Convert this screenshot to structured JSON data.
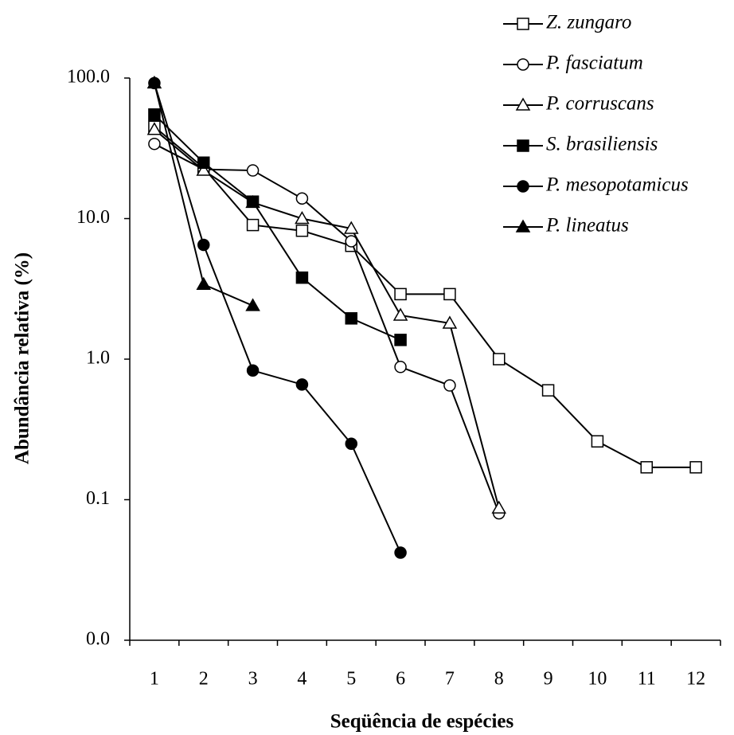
{
  "chart_data": {
    "type": "line",
    "x_label": "Seqüência de espécies",
    "y_label": "Abundância relativa (%)",
    "categories": [
      1,
      2,
      3,
      4,
      5,
      6,
      7,
      8,
      9,
      10,
      11,
      12
    ],
    "log_scale_y": true,
    "ylim": [
      0.01,
      100
    ],
    "yticks": [
      {
        "value": 0.01,
        "label": "0.0"
      },
      {
        "value": 0.1,
        "label": "0.1"
      },
      {
        "value": 1,
        "label": "1.0"
      },
      {
        "value": 10,
        "label": "10.0"
      },
      {
        "value": 100,
        "label": "100.0"
      }
    ],
    "legend_position": "top-right",
    "series": [
      {
        "name": "Z. zungaro",
        "color": "#000000",
        "marker": "square",
        "marker_fill": "#ffffff",
        "values": [
          45,
          23,
          9.0,
          8.2,
          6.4,
          2.9,
          2.9,
          1.0,
          0.6,
          0.26,
          0.17,
          0.17
        ]
      },
      {
        "name": "P. fasciatum",
        "color": "#000000",
        "marker": "circle",
        "marker_fill": "#ffffff",
        "values": [
          34,
          22.4,
          22,
          13.9,
          6.9,
          0.88,
          0.65,
          0.08,
          null,
          null,
          null,
          null
        ]
      },
      {
        "name": "P. corruscans",
        "color": "#000000",
        "marker": "triangle",
        "marker_fill": "#ffffff",
        "values": [
          43,
          22,
          13,
          10,
          8.5,
          2.05,
          1.8,
          0.087,
          null,
          null,
          null,
          null
        ]
      },
      {
        "name": "S. brasiliensis",
        "color": "#000000",
        "marker": "square",
        "marker_fill": "#000000",
        "values": [
          55,
          25,
          13.2,
          3.8,
          1.95,
          1.37,
          null,
          null,
          null,
          null,
          null,
          null
        ]
      },
      {
        "name": "P. mesopotamicus",
        "color": "#000000",
        "marker": "circle",
        "marker_fill": "#000000",
        "values": [
          92,
          6.5,
          0.83,
          0.66,
          0.25,
          0.042,
          null,
          null,
          null,
          null,
          null,
          null
        ]
      },
      {
        "name": "P. lineatus",
        "color": "#000000",
        "marker": "triangle",
        "marker_fill": "#000000",
        "values": [
          92,
          3.4,
          2.4,
          null,
          null,
          null,
          null,
          null,
          null,
          null,
          null,
          null
        ]
      }
    ]
  }
}
